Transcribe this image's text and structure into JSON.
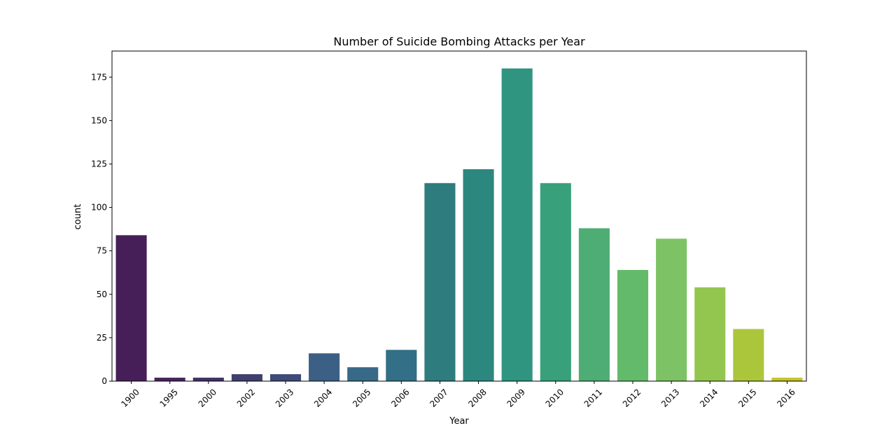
{
  "chart_data": {
    "type": "bar",
    "title": "Number of Suicide Bombing Attacks per Year",
    "xlabel": "Year",
    "ylabel": "count",
    "categories": [
      "1900",
      "1995",
      "2000",
      "2002",
      "2003",
      "2004",
      "2005",
      "2006",
      "2007",
      "2008",
      "2009",
      "2010",
      "2011",
      "2012",
      "2013",
      "2014",
      "2015",
      "2016"
    ],
    "values": [
      84,
      2,
      2,
      4,
      4,
      16,
      8,
      18,
      114,
      122,
      180,
      114,
      88,
      64,
      82,
      54,
      30,
      2
    ],
    "colors": [
      "#461f59",
      "#47245e",
      "#433266",
      "#40406f",
      "#3e4a78",
      "#3c5f85",
      "#386a87",
      "#336f86",
      "#2f7c7e",
      "#2c887f",
      "#2f9580",
      "#38a07b",
      "#4ead74",
      "#63ba6b",
      "#7dc264",
      "#93c64f",
      "#acc63c",
      "#c5c52e"
    ],
    "ylim": [
      0,
      190
    ],
    "yticks": [
      0,
      25,
      50,
      75,
      100,
      125,
      150,
      175
    ],
    "grid": false,
    "legend": "none"
  }
}
